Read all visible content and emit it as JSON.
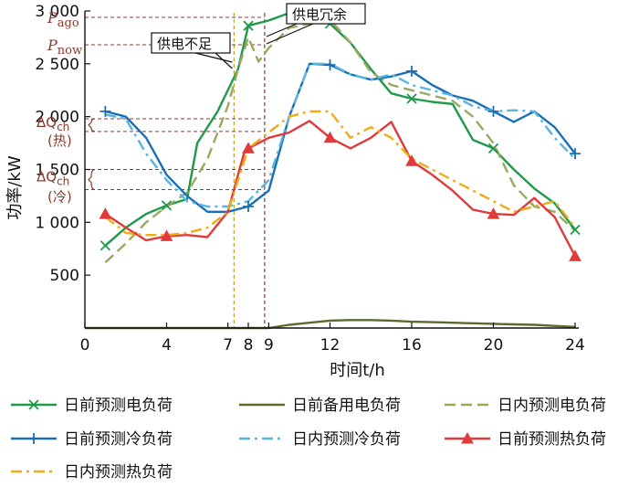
{
  "chart_data": {
    "type": "line",
    "xlabel": "时间t/h",
    "ylabel": "功率/kW",
    "xlim": [
      0,
      24
    ],
    "ylim": [
      0,
      3000
    ],
    "x_ticks": [
      {
        "v": 0,
        "label": "0"
      },
      {
        "v": 4,
        "label": "4"
      },
      {
        "v": 7,
        "label": "7"
      },
      {
        "v": 8,
        "label": "8"
      },
      {
        "v": 9,
        "label": "9"
      },
      {
        "v": 12,
        "label": "12"
      },
      {
        "v": 16,
        "label": "16"
      },
      {
        "v": 20,
        "label": "20"
      },
      {
        "v": 24,
        "label": "24"
      }
    ],
    "y_ticks": [
      {
        "v": 500,
        "label": "500"
      },
      {
        "v": 1000,
        "label": "1 000"
      },
      {
        "v": 1500,
        "label": "1 500"
      },
      {
        "v": 2000,
        "label": "2 000"
      },
      {
        "v": 2500,
        "label": "2 500"
      },
      {
        "v": 3000,
        "label": "3 000"
      }
    ],
    "vlines": [
      7.3,
      8.8
    ],
    "hlines": [
      {
        "y": 2940,
        "label": "P_ago"
      },
      {
        "y": 2680,
        "label": "P_now"
      },
      {
        "y": 1980
      },
      {
        "y": 1860
      },
      {
        "y": 1500
      },
      {
        "y": 1310
      }
    ],
    "annotations": {
      "p_ago": {
        "main": "P",
        "sub": "ago"
      },
      "p_now": {
        "main": "P",
        "sub": "now"
      },
      "dq_heat": {
        "main": "ΔQ",
        "sub": "ch",
        "note": "(热)"
      },
      "dq_cold": {
        "main": "ΔQ",
        "sub": "ch",
        "note": "(冷)"
      },
      "callout_shortage": "供电不足",
      "callout_surplus": "供电冗余"
    },
    "series": [
      {
        "name": "日前预测电负荷",
        "color": "#1f9a4a",
        "dash": "",
        "marker": "x",
        "x": [
          1,
          2,
          3,
          4,
          5,
          5.5,
          6.5,
          7.5,
          8,
          9,
          10,
          11,
          12,
          13,
          14,
          15,
          16,
          17,
          18,
          19,
          20,
          21,
          22,
          23,
          24
        ],
        "y": [
          780,
          950,
          1080,
          1160,
          1220,
          1750,
          2050,
          2450,
          2860,
          2910,
          2980,
          2990,
          2880,
          2700,
          2450,
          2220,
          2170,
          2140,
          2120,
          1780,
          1700,
          1500,
          1320,
          1180,
          930
        ],
        "marker_x": [
          1,
          4,
          8,
          12,
          16,
          20,
          24
        ]
      },
      {
        "name": "日前备用电负荷",
        "color": "#5a6b2c",
        "dash": "",
        "marker": "none",
        "x": [
          0,
          9,
          10,
          11,
          12,
          13,
          14,
          15,
          16,
          17,
          18,
          19,
          20,
          21,
          22,
          23,
          24
        ],
        "y": [
          0,
          0,
          30,
          50,
          70,
          75,
          75,
          70,
          60,
          55,
          50,
          45,
          40,
          35,
          30,
          20,
          10
        ],
        "marker_x": []
      },
      {
        "name": "日内预测电负荷",
        "color": "#9aa860",
        "dash": "12,6",
        "marker": "none",
        "x": [
          1,
          2,
          3,
          4,
          5,
          6,
          7,
          7.5,
          8,
          8.5,
          9,
          10,
          11,
          12,
          13,
          14,
          15,
          16,
          17,
          18,
          19,
          20,
          21,
          22,
          23,
          24
        ],
        "y": [
          620,
          800,
          1000,
          1150,
          1280,
          1600,
          2100,
          2450,
          2750,
          2520,
          2650,
          2840,
          2880,
          2920,
          2700,
          2420,
          2300,
          2250,
          2200,
          2150,
          2000,
          1750,
          1350,
          1150,
          1100,
          920
        ],
        "marker_x": []
      },
      {
        "name": "日前预测冷负荷",
        "color": "#1a6fb5",
        "dash": "",
        "marker": "+",
        "x": [
          1,
          2,
          3,
          4,
          5,
          6,
          7,
          8,
          9,
          10,
          11,
          12,
          13,
          14,
          15,
          16,
          17,
          18,
          19,
          20,
          21,
          22,
          23,
          24
        ],
        "y": [
          2050,
          2000,
          1800,
          1450,
          1250,
          1100,
          1100,
          1150,
          1300,
          2000,
          2500,
          2490,
          2400,
          2350,
          2380,
          2430,
          2300,
          2200,
          2150,
          2050,
          1950,
          2050,
          1900,
          1650
        ],
        "marker_x": [
          1,
          8,
          12,
          16,
          20,
          24
        ]
      },
      {
        "name": "日内预测冷负荷",
        "color": "#5ab4e0",
        "dash": "12,5,3,5",
        "marker": "none",
        "x": [
          1,
          2,
          3,
          4,
          5,
          6,
          7,
          8,
          9,
          10,
          11,
          12,
          13,
          14,
          15,
          16,
          17,
          18,
          19,
          20,
          21,
          22,
          23,
          24
        ],
        "y": [
          2020,
          1980,
          1650,
          1400,
          1200,
          1150,
          1150,
          1200,
          1400,
          2000,
          2500,
          2500,
          2400,
          2350,
          2400,
          2300,
          2250,
          2200,
          2100,
          2050,
          2060,
          2050,
          1800,
          1600
        ],
        "marker_x": []
      },
      {
        "name": "日前预测热负荷",
        "color": "#e03a3a",
        "dash": "",
        "marker": "triangle",
        "x": [
          1,
          2,
          3,
          4,
          5,
          6,
          7,
          7.8,
          8,
          9,
          10,
          11,
          12,
          13,
          14,
          15,
          16,
          17,
          18,
          19,
          20,
          21,
          22,
          23,
          24
        ],
        "y": [
          1080,
          950,
          830,
          870,
          880,
          860,
          1100,
          1660,
          1700,
          1800,
          1850,
          1960,
          1800,
          1700,
          1800,
          1950,
          1580,
          1450,
          1300,
          1120,
          1080,
          1070,
          1230,
          1050,
          680
        ],
        "marker_x": [
          1,
          4,
          8,
          12,
          16,
          20,
          24
        ]
      },
      {
        "name": "日内预测热负荷",
        "color": "#f0ac18",
        "dash": "12,5,3,5",
        "marker": "none",
        "x": [
          1,
          2,
          3,
          4,
          5,
          6,
          7,
          8,
          9,
          10,
          11,
          12,
          13,
          14,
          15,
          16,
          17,
          18,
          19,
          20,
          21,
          22,
          23,
          24
        ],
        "y": [
          1050,
          900,
          880,
          880,
          900,
          950,
          1100,
          1700,
          1850,
          2000,
          2050,
          2050,
          1800,
          1900,
          1800,
          1600,
          1500,
          1400,
          1300,
          1200,
          1100,
          1150,
          1200,
          950
        ],
        "marker_x": []
      }
    ],
    "legend_order": [
      0,
      1,
      2,
      3,
      4,
      5,
      6
    ]
  }
}
